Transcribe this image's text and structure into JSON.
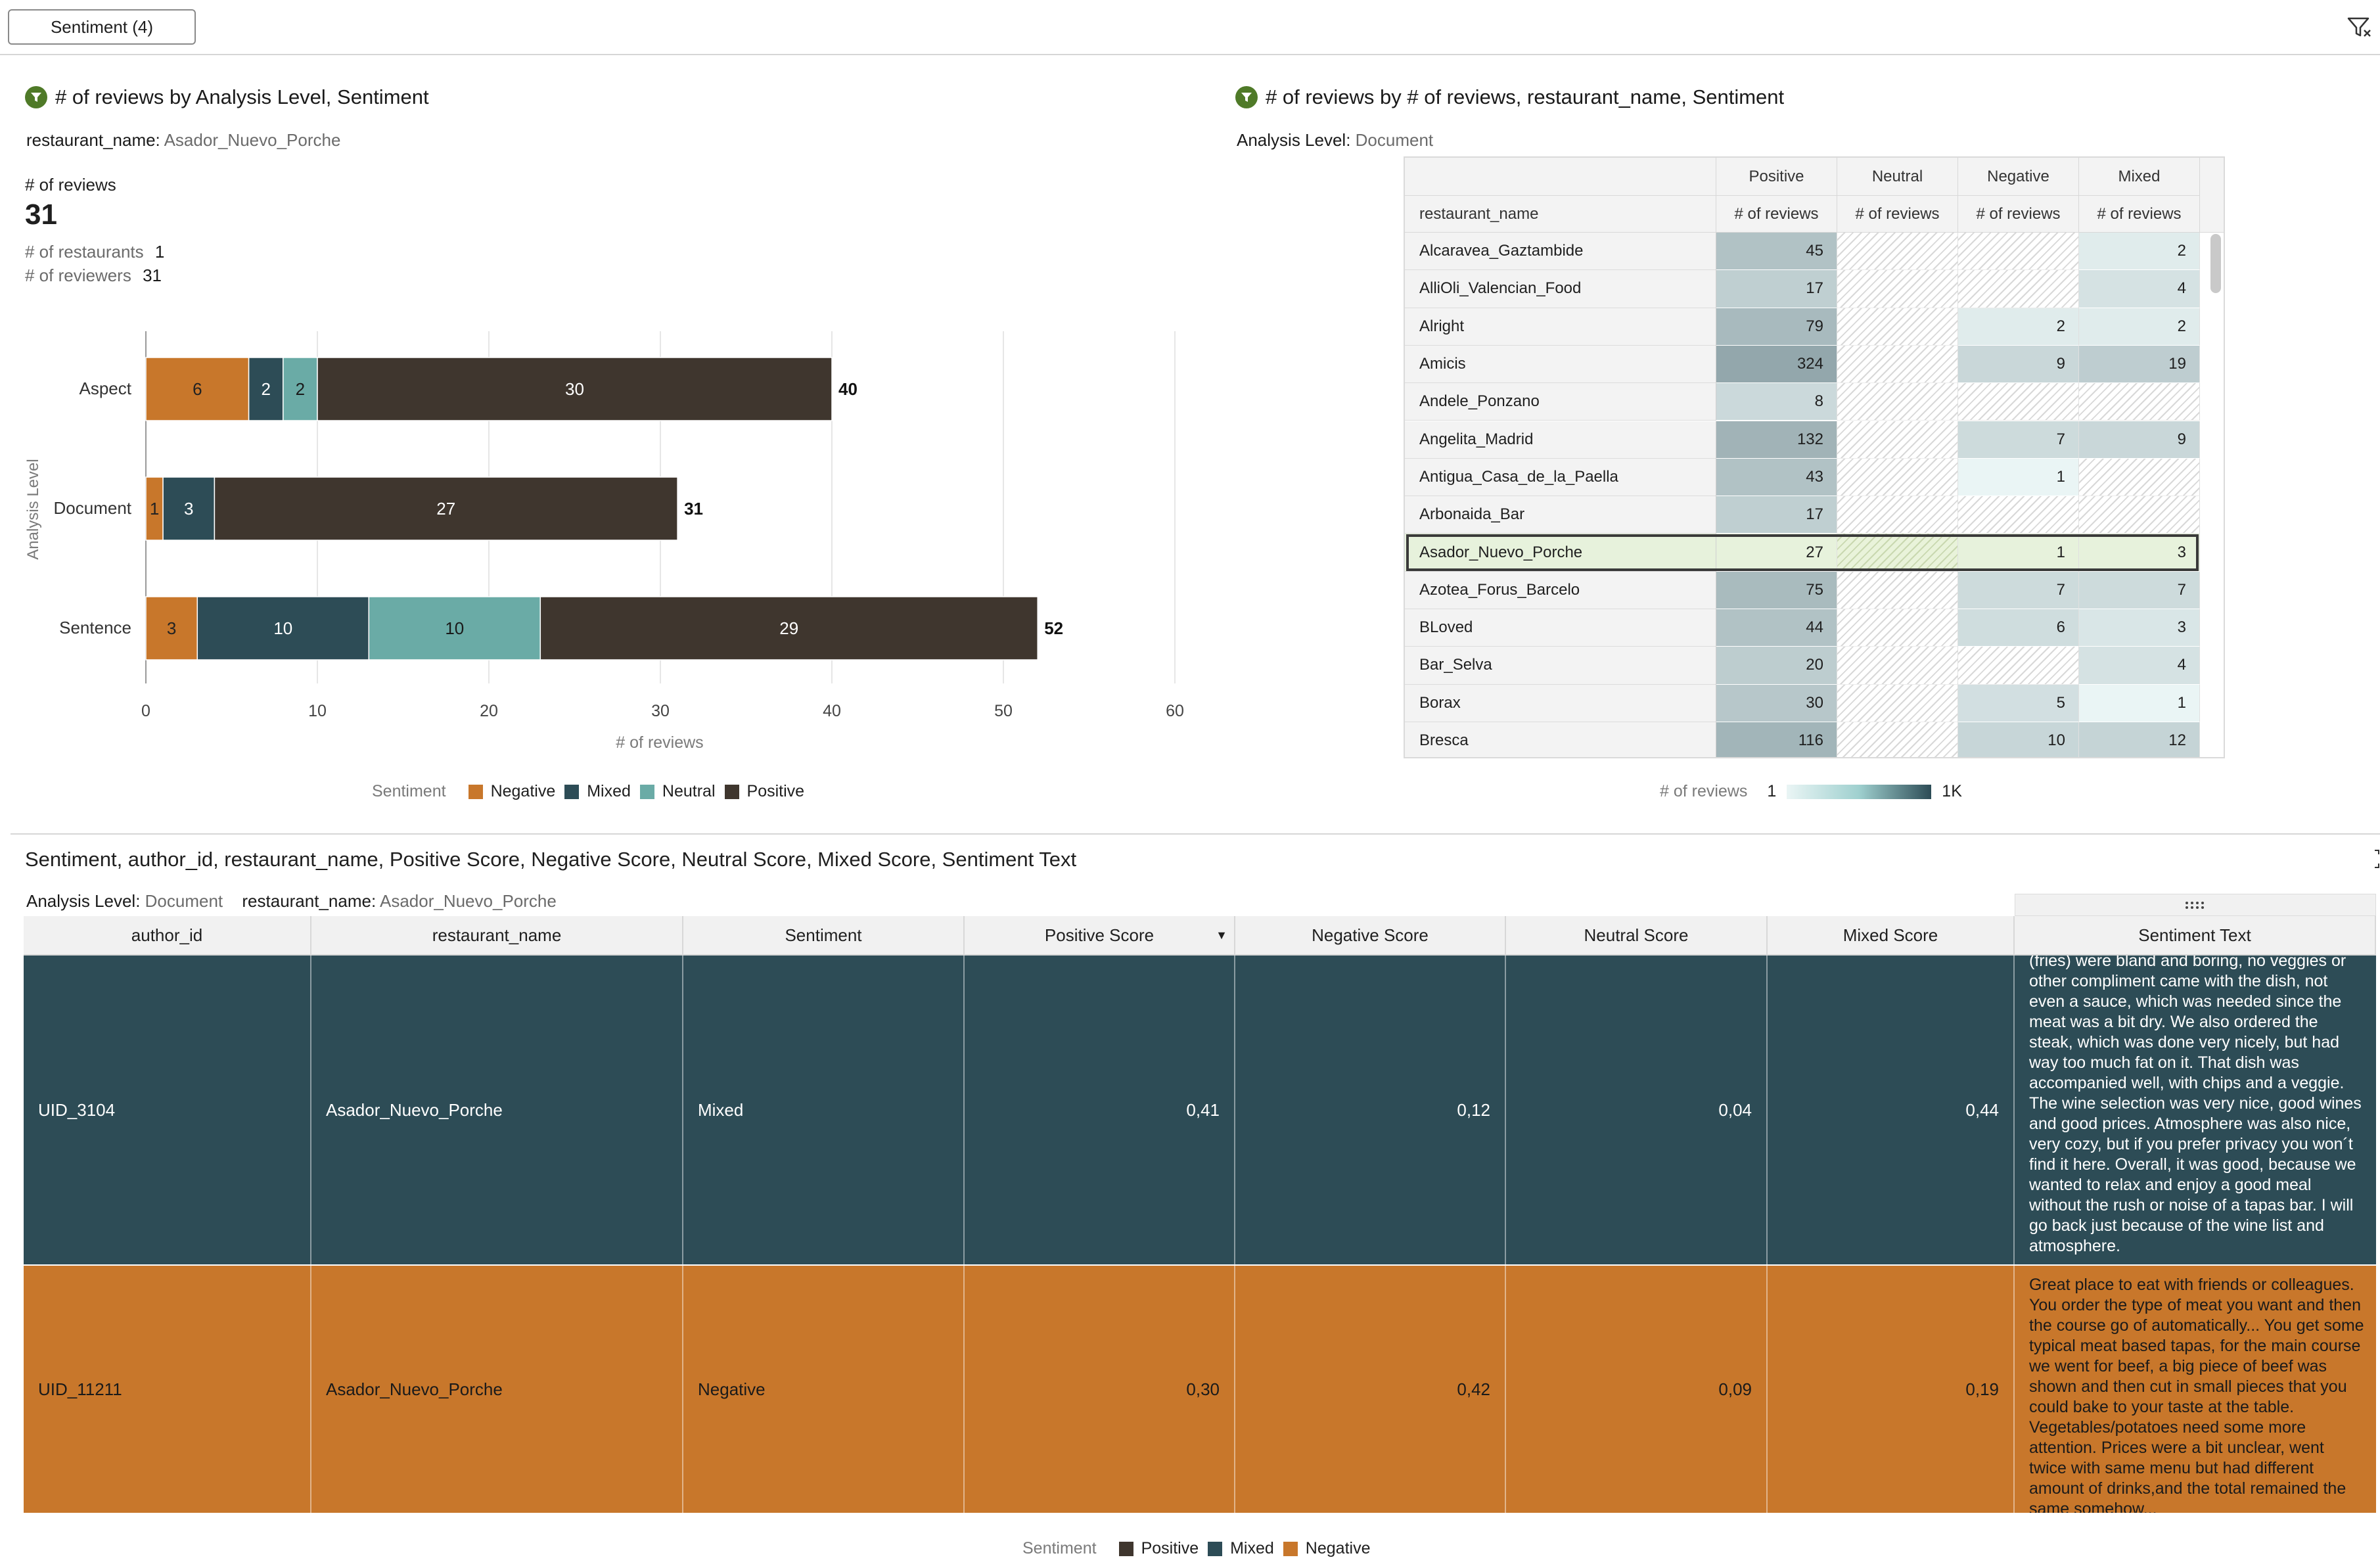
{
  "filter_chip": "Sentiment (4)",
  "bar_chart": {
    "title": "# of reviews by Analysis Level, Sentiment",
    "filter_label": "restaurant_name:",
    "filter_value": "Asador_Nuevo_Porche",
    "kpi_label": "# of reviews",
    "kpi_value": "31",
    "stat1_label": "# of restaurants",
    "stat1_value": "1",
    "stat2_label": "# of reviewers",
    "stat2_value": "31",
    "legend_title": "Sentiment"
  },
  "pivot": {
    "title": "# of reviews by # of reviews, restaurant_name, Sentiment",
    "filter_label": "Analysis Level:",
    "filter_value": "Document",
    "row_header": "restaurant_name",
    "col_headers": [
      "Positive",
      "Neutral",
      "Negative",
      "Mixed"
    ],
    "measure": "# of reviews",
    "rows": [
      {
        "name": "Alcaravea_Gaztambide",
        "values": [
          45,
          null,
          null,
          2
        ]
      },
      {
        "name": "AlliOli_Valencian_Food",
        "values": [
          17,
          null,
          null,
          4
        ]
      },
      {
        "name": "Alright",
        "values": [
          79,
          null,
          2,
          2
        ]
      },
      {
        "name": "Amicis",
        "values": [
          324,
          null,
          9,
          19
        ]
      },
      {
        "name": "Andele_Ponzano",
        "values": [
          8,
          null,
          null,
          null
        ]
      },
      {
        "name": "Angelita_Madrid",
        "values": [
          132,
          null,
          7,
          9
        ]
      },
      {
        "name": "Antigua_Casa_de_la_Paella",
        "values": [
          43,
          null,
          1,
          null
        ]
      },
      {
        "name": "Arbonaida_Bar",
        "values": [
          17,
          null,
          null,
          null
        ]
      },
      {
        "name": "Asador_Nuevo_Porche",
        "values": [
          27,
          null,
          1,
          3
        ],
        "selected": true
      },
      {
        "name": "Azotea_Forus_Barcelo",
        "values": [
          75,
          null,
          7,
          7
        ]
      },
      {
        "name": "BLoved",
        "values": [
          44,
          null,
          6,
          3
        ]
      },
      {
        "name": "Bar_Selva",
        "values": [
          20,
          null,
          null,
          4
        ]
      },
      {
        "name": "Borax",
        "values": [
          30,
          null,
          5,
          1
        ]
      },
      {
        "name": "Bresca",
        "values": [
          116,
          null,
          10,
          12
        ]
      }
    ],
    "legend_title": "# of reviews",
    "legend_min": "1",
    "legend_max": "1K"
  },
  "chart_data": [
    {
      "type": "bar",
      "orientation": "horizontal",
      "stacked": true,
      "categories": [
        "Aspect",
        "Document",
        "Sentence"
      ],
      "series": [
        {
          "name": "Negative",
          "values": [
            6,
            1,
            3
          ],
          "color": "#c8772b"
        },
        {
          "name": "Mixed",
          "values": [
            2,
            3,
            10
          ],
          "color": "#2d4c56"
        },
        {
          "name": "Neutral",
          "values": [
            2,
            0,
            10
          ],
          "color": "#6aaba6"
        },
        {
          "name": "Positive",
          "values": [
            30,
            27,
            29
          ],
          "color": "#3f362e"
        }
      ],
      "totals": [
        40,
        31,
        52
      ],
      "xlabel": "# of reviews",
      "ylabel": "Analysis Level",
      "xlim": [
        0,
        60
      ],
      "xticks": [
        0,
        10,
        20,
        30,
        40,
        50,
        60
      ],
      "grid": true,
      "legend": "bottom"
    },
    {
      "type": "heatmap",
      "title": "# of reviews by # of reviews, restaurant_name, Sentiment",
      "x": [
        "Positive",
        "Neutral",
        "Negative",
        "Mixed"
      ],
      "y": [
        "Alcaravea_Gaztambide",
        "AlliOli_Valencian_Food",
        "Alright",
        "Amicis",
        "Andele_Ponzano",
        "Angelita_Madrid",
        "Antigua_Casa_de_la_Paella",
        "Arbonaida_Bar",
        "Asador_Nuevo_Porche",
        "Azotea_Forus_Barcelo",
        "BLoved",
        "Bar_Selva",
        "Borax",
        "Bresca"
      ],
      "values": [
        [
          45,
          null,
          null,
          2
        ],
        [
          17,
          null,
          null,
          4
        ],
        [
          79,
          null,
          2,
          2
        ],
        [
          324,
          null,
          9,
          19
        ],
        [
          8,
          null,
          null,
          null
        ],
        [
          132,
          null,
          7,
          9
        ],
        [
          43,
          null,
          1,
          null
        ],
        [
          17,
          null,
          null,
          null
        ],
        [
          27,
          null,
          1,
          3
        ],
        [
          75,
          null,
          7,
          7
        ],
        [
          44,
          null,
          6,
          3
        ],
        [
          20,
          null,
          null,
          4
        ],
        [
          30,
          null,
          5,
          1
        ],
        [
          116,
          null,
          10,
          12
        ]
      ]
    }
  ],
  "detail": {
    "title": "Sentiment, author_id, restaurant_name, Positive Score, Negative Score, Neutral Score, Mixed Score, Sentiment Text",
    "filter1_label": "Analysis Level:",
    "filter1_value": "Document",
    "filter2_label": "restaurant_name:",
    "filter2_value": "Asador_Nuevo_Porche",
    "columns": [
      "author_id",
      "restaurant_name",
      "Sentiment",
      "Positive Score",
      "Negative Score",
      "Neutral Score",
      "Mixed Score",
      "Sentiment Text"
    ],
    "rows": [
      {
        "author_id": "UID_3104",
        "restaurant_name": "Asador_Nuevo_Porche",
        "sentiment": "Mixed",
        "positive": "0,41",
        "negative": "0,12",
        "neutral": "0,04",
        "mixed": "0,44",
        "text": "(fries) were bland and boring, no veggies or other compliment came with the dish, not even a sauce, which was needed since the meat was a bit dry. We also ordered the steak, which was done very nicely, but had way too much fat on it. That dish was accompanied well, with chips and a veggie. The wine selection was very nice, good wines and good prices. Atmosphere was also nice, very cozy, but if you prefer privacy you won´t find it here. Overall, it was good, because we wanted to relax and enjoy a good meal without the rush or noise of a tapas bar. I will go back just because of the wine list and atmosphere."
      },
      {
        "author_id": "UID_11211",
        "restaurant_name": "Asador_Nuevo_Porche",
        "sentiment": "Negative",
        "positive": "0,30",
        "negative": "0,42",
        "neutral": "0,09",
        "mixed": "0,19",
        "text": "Great place to eat with friends or colleagues. You order the type of meat you want and then the course go of automatically... You get some typical meat based tapas, for the main course we went for beef, a big piece of beef was shown and then cut in small pieces that you could bake to your taste at the table. Vegetables/potatoes need some more attention. Prices were a bit unclear, went twice with same menu but had different amount of drinks,and the total remained the same somehow..."
      }
    ],
    "legend_title": "Sentiment",
    "legend": [
      {
        "name": "Positive",
        "color": "#3f362e"
      },
      {
        "name": "Mixed",
        "color": "#2d4c56"
      },
      {
        "name": "Negative",
        "color": "#c8772b"
      }
    ]
  }
}
